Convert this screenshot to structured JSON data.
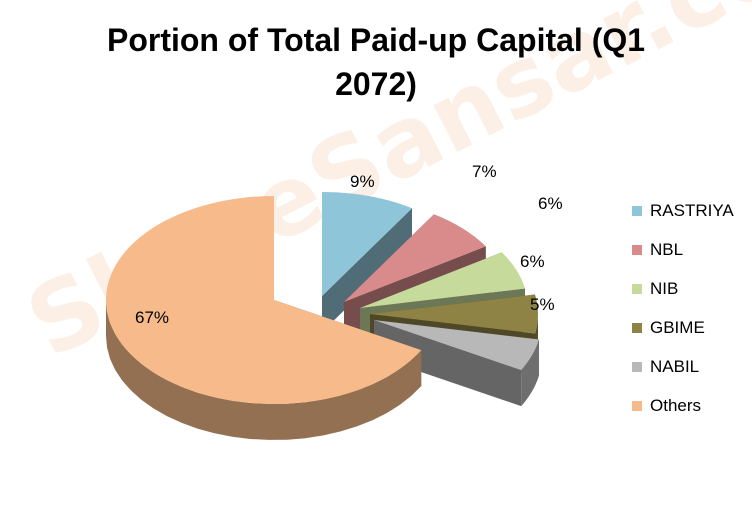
{
  "watermark": "ShareSansar.com",
  "chart_data": {
    "type": "pie",
    "title_lines": [
      "Portion of Total Paid-up Capital (Q1",
      "2072)"
    ],
    "slices": [
      {
        "label": "RASTRIYA",
        "value": 9,
        "display": "9%",
        "color": "#8fc5d8"
      },
      {
        "label": "NBL",
        "value": 7,
        "display": "7%",
        "color": "#d98b8b"
      },
      {
        "label": "NIB",
        "value": 6,
        "display": "6%",
        "color": "#c5da9b"
      },
      {
        "label": "GBIME",
        "value": 6,
        "display": "6%",
        "color": "#8f8245"
      },
      {
        "label": "NABIL",
        "value": 5,
        "display": "5%",
        "color": "#b8b8b8"
      },
      {
        "label": "Others",
        "value": 67,
        "display": "67%",
        "color": "#f7bb8b"
      }
    ],
    "style": "3d-exploded",
    "legend_position": "right"
  }
}
